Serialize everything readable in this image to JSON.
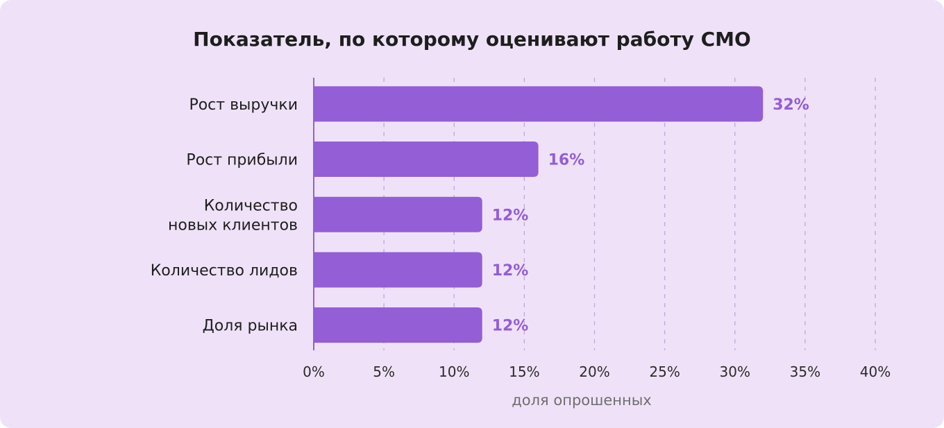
{
  "chart_data": {
    "type": "bar",
    "orientation": "horizontal",
    "title": "Показатель, по которому оценивают работу СМО",
    "xlabel": "доля опрошенных",
    "ylabel": "",
    "categories": [
      [
        "Рост выручки"
      ],
      [
        "Рост прибыли"
      ],
      [
        "Количество",
        "новых клиентов"
      ],
      [
        "Количество лидов"
      ],
      [
        "Доля рынка"
      ]
    ],
    "values": [
      32,
      16,
      12,
      12,
      12
    ],
    "data_labels": [
      "32%",
      "16%",
      "12%",
      "12%",
      "12%"
    ],
    "xlim": [
      0,
      40
    ],
    "xticks": [
      0,
      5,
      10,
      15,
      20,
      25,
      30,
      35,
      40
    ],
    "xtick_labels": [
      "0%",
      "5%",
      "10%",
      "15%",
      "20%",
      "25%",
      "30%",
      "35%",
      "40%"
    ],
    "grid": "vertical dashed",
    "legend": "none",
    "colors": {
      "bar": "#935ED6",
      "label": "#935ED6",
      "background": "#EFE2F8",
      "grid": "#BBA8DD",
      "text": "#1E1E1E"
    }
  }
}
